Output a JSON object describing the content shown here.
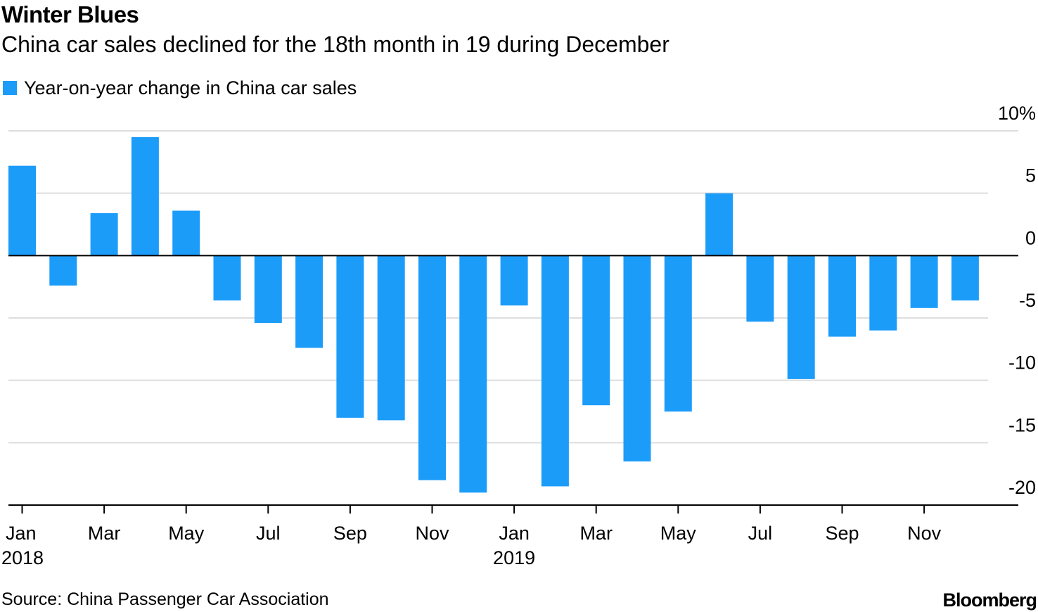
{
  "chart_data": {
    "type": "bar",
    "title": "Winter Blues",
    "subtitle": "China car sales declined for the 18th month in 19 during December",
    "legend": [
      {
        "label": "Year-on-year change in China car sales",
        "color": "#1c9cf9"
      }
    ],
    "xlabel": "",
    "ylabel": "",
    "ylim": [
      -20,
      10
    ],
    "yticks": [
      10,
      5,
      0,
      -5,
      -10,
      -15,
      -20
    ],
    "ytick_labels": [
      "10%",
      "5",
      "0",
      "-5",
      "-10",
      "-15",
      "-20"
    ],
    "grid": true,
    "categories": [
      "Jan 2018",
      "Feb 2018",
      "Mar 2018",
      "Apr 2018",
      "May 2018",
      "Jun 2018",
      "Jul 2018",
      "Aug 2018",
      "Sep 2018",
      "Oct 2018",
      "Nov 2018",
      "Dec 2018",
      "Jan 2019",
      "Feb 2019",
      "Mar 2019",
      "Apr 2019",
      "May 2019",
      "Jun 2019",
      "Jul 2019",
      "Aug 2019",
      "Sep 2019",
      "Oct 2019",
      "Nov 2019",
      "Dec 2019"
    ],
    "series": [
      {
        "name": "Year-on-year change in China car sales",
        "values": [
          7.2,
          -2.4,
          3.4,
          9.5,
          3.6,
          -3.6,
          -5.4,
          -7.4,
          -13.0,
          -13.2,
          -18.0,
          -19.0,
          -4.0,
          -18.5,
          -12.0,
          -16.5,
          -12.5,
          5.0,
          -5.3,
          -9.9,
          -6.5,
          -6.0,
          -4.2,
          -3.6
        ]
      }
    ],
    "xtick_labels": [
      {
        "index": 0,
        "month": "Jan",
        "year": "2018"
      },
      {
        "index": 2,
        "month": "Mar",
        "year": ""
      },
      {
        "index": 4,
        "month": "May",
        "year": ""
      },
      {
        "index": 6,
        "month": "Jul",
        "year": ""
      },
      {
        "index": 8,
        "month": "Sep",
        "year": ""
      },
      {
        "index": 10,
        "month": "Nov",
        "year": ""
      },
      {
        "index": 12,
        "month": "Jan",
        "year": "2019"
      },
      {
        "index": 14,
        "month": "Mar",
        "year": ""
      },
      {
        "index": 16,
        "month": "May",
        "year": ""
      },
      {
        "index": 18,
        "month": "Jul",
        "year": ""
      },
      {
        "index": 20,
        "month": "Sep",
        "year": ""
      },
      {
        "index": 22,
        "month": "Nov",
        "year": ""
      }
    ],
    "bar_color": "#1c9cf9",
    "grid_color": "#dddddd"
  },
  "source": "Source: China Passenger Car Association",
  "brand": "Bloomberg"
}
